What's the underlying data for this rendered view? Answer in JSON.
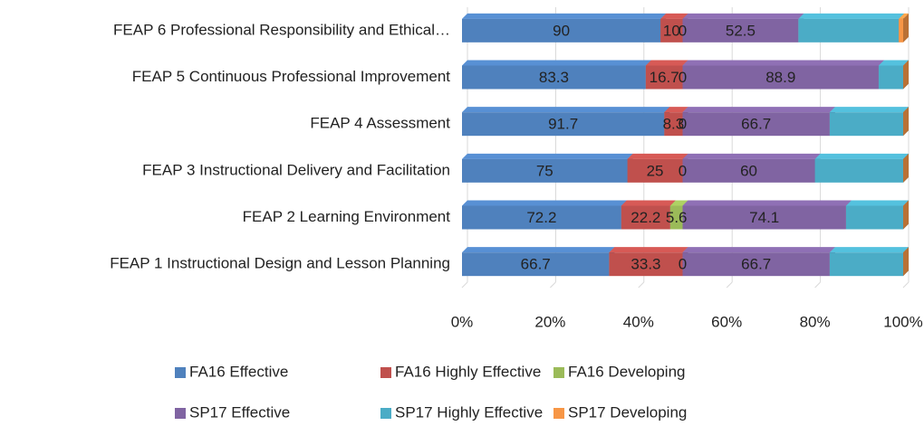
{
  "chart_data": {
    "type": "stacked_bar_100_horizontal",
    "categories": [
      "FEAP 1 Instructional Design and Lesson Planning",
      "FEAP 2 Learning Environment",
      "FEAP 3 Instructional Delivery and Facilitation",
      "FEAP 4  Assessment",
      "FEAP 5 Continuous Professional Improvement",
      "FEAP 6 Professional Responsibility and Ethical…"
    ],
    "series": [
      {
        "name": "FA16 Effective",
        "color": "#4f81bd",
        "data_labels": true,
        "values": [
          66.7,
          72.2,
          75,
          91.7,
          83.3,
          90
        ]
      },
      {
        "name": "FA16 Highly Effective",
        "color": "#c0504d",
        "data_labels": true,
        "values": [
          33.3,
          22.2,
          25,
          8.3,
          16.7,
          10
        ]
      },
      {
        "name": "FA16 Developing",
        "color": "#9bbb59",
        "data_labels": true,
        "values": [
          0,
          5.6,
          0,
          0,
          0,
          0
        ]
      },
      {
        "name": "SP17 Effective",
        "color": "#8064a2",
        "data_labels": true,
        "values": [
          66.7,
          74.1,
          60,
          66.7,
          88.9,
          52.5
        ]
      },
      {
        "name": "SP17 Highly Effective",
        "color": "#4bacc6",
        "data_labels": false,
        "values": [
          33.3,
          25.9,
          40,
          33.3,
          11.1,
          45.5
        ]
      },
      {
        "name": "SP17 Developing",
        "color": "#f79646",
        "data_labels": false,
        "values": [
          0,
          0,
          0,
          0,
          0,
          2
        ]
      }
    ],
    "xlim": [
      0,
      100
    ],
    "xticks": [
      {
        "value": 0,
        "label": "0%"
      },
      {
        "value": 20,
        "label": "20%"
      },
      {
        "value": 40,
        "label": "40%"
      },
      {
        "value": 60,
        "label": "60%"
      },
      {
        "value": 80,
        "label": "80%"
      },
      {
        "value": 100,
        "label": "100%"
      }
    ],
    "grid": true,
    "legend": "bottom"
  }
}
